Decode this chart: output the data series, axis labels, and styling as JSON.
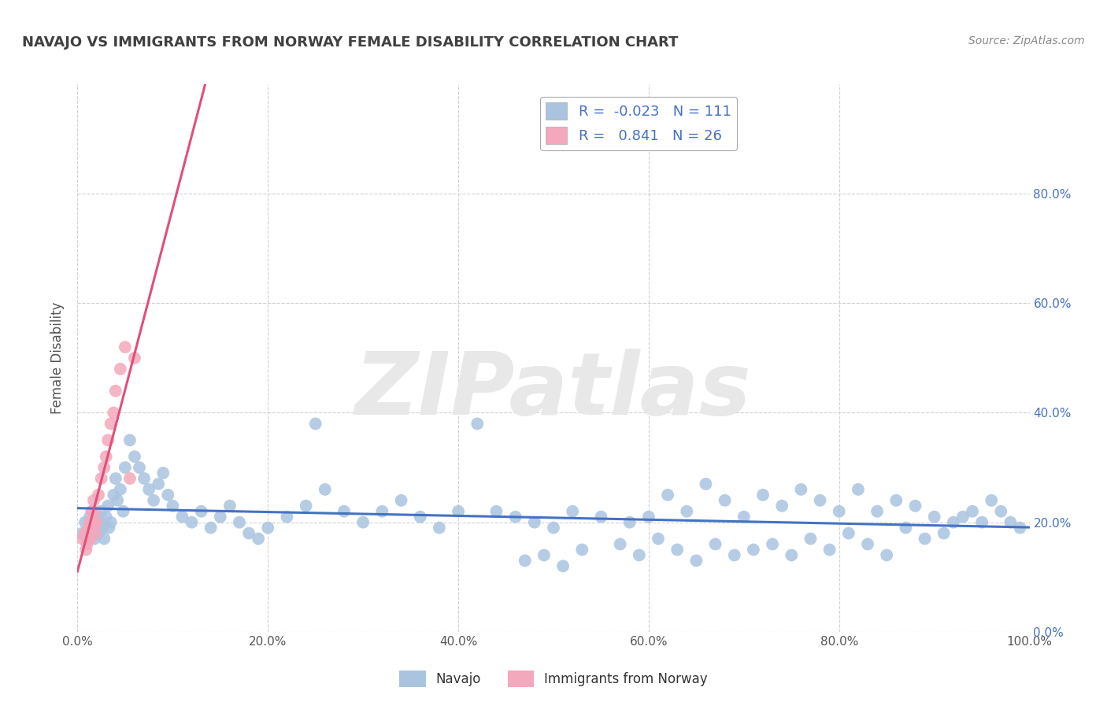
{
  "title": "NAVAJO VS IMMIGRANTS FROM NORWAY FEMALE DISABILITY CORRELATION CHART",
  "source": "Source: ZipAtlas.com",
  "ylabel": "Female Disability",
  "legend_navajo": "Navajo",
  "legend_norway": "Immigrants from Norway",
  "r_navajo": -0.023,
  "n_navajo": 111,
  "r_norway": 0.841,
  "n_norway": 26,
  "xlim": [
    0.0,
    1.0
  ],
  "ylim": [
    0.0,
    1.0
  ],
  "xticks": [
    0.0,
    0.2,
    0.4,
    0.6,
    0.8,
    1.0
  ],
  "yticks": [
    0.0,
    0.2,
    0.4,
    0.6,
    0.8
  ],
  "xtick_labels": [
    "0.0%",
    "20.0%",
    "40.0%",
    "60.0%",
    "80.0%",
    "100.0%"
  ],
  "ytick_labels_right": [
    "0.0%",
    "20.0%",
    "40.0%",
    "60.0%",
    "80.0%"
  ],
  "color_navajo": "#aac4e0",
  "color_norway": "#f4a8bb",
  "color_navajo_line": "#4472c4",
  "color_norway_line": "#e0507a",
  "background_color": "#ffffff",
  "grid_color": "#cccccc",
  "title_color": "#404040",
  "ytick_color": "#4472c4",
  "xtick_color": "#555555",
  "watermark_text": "ZIPatlas",
  "watermark_color": "#e8e8e8",
  "navajo_x": [
    0.005,
    0.008,
    0.01,
    0.012,
    0.013,
    0.015,
    0.016,
    0.017,
    0.018,
    0.019,
    0.02,
    0.022,
    0.024,
    0.025,
    0.026,
    0.028,
    0.03,
    0.032,
    0.033,
    0.035,
    0.038,
    0.04,
    0.042,
    0.045,
    0.048,
    0.05,
    0.055,
    0.06,
    0.065,
    0.07,
    0.075,
    0.08,
    0.085,
    0.09,
    0.095,
    0.1,
    0.11,
    0.12,
    0.13,
    0.14,
    0.15,
    0.16,
    0.17,
    0.18,
    0.19,
    0.2,
    0.22,
    0.24,
    0.25,
    0.26,
    0.28,
    0.3,
    0.32,
    0.34,
    0.36,
    0.38,
    0.4,
    0.42,
    0.44,
    0.46,
    0.48,
    0.5,
    0.52,
    0.55,
    0.58,
    0.6,
    0.62,
    0.64,
    0.66,
    0.68,
    0.7,
    0.72,
    0.74,
    0.76,
    0.78,
    0.8,
    0.82,
    0.84,
    0.86,
    0.88,
    0.9,
    0.92,
    0.94,
    0.96,
    0.98,
    0.99,
    0.97,
    0.95,
    0.93,
    0.91,
    0.89,
    0.87,
    0.85,
    0.83,
    0.81,
    0.79,
    0.77,
    0.75,
    0.73,
    0.71,
    0.69,
    0.67,
    0.65,
    0.63,
    0.61,
    0.59,
    0.57,
    0.53,
    0.51,
    0.49,
    0.47
  ],
  "navajo_y": [
    0.18,
    0.2,
    0.17,
    0.19,
    0.21,
    0.22,
    0.2,
    0.18,
    0.17,
    0.19,
    0.21,
    0.18,
    0.2,
    0.22,
    0.19,
    0.17,
    0.21,
    0.23,
    0.19,
    0.2,
    0.25,
    0.28,
    0.24,
    0.26,
    0.22,
    0.3,
    0.35,
    0.32,
    0.3,
    0.28,
    0.26,
    0.24,
    0.27,
    0.29,
    0.25,
    0.23,
    0.21,
    0.2,
    0.22,
    0.19,
    0.21,
    0.23,
    0.2,
    0.18,
    0.17,
    0.19,
    0.21,
    0.23,
    0.38,
    0.26,
    0.22,
    0.2,
    0.22,
    0.24,
    0.21,
    0.19,
    0.22,
    0.38,
    0.22,
    0.21,
    0.2,
    0.19,
    0.22,
    0.21,
    0.2,
    0.21,
    0.25,
    0.22,
    0.27,
    0.24,
    0.21,
    0.25,
    0.23,
    0.26,
    0.24,
    0.22,
    0.26,
    0.22,
    0.24,
    0.23,
    0.21,
    0.2,
    0.22,
    0.24,
    0.2,
    0.19,
    0.22,
    0.2,
    0.21,
    0.18,
    0.17,
    0.19,
    0.14,
    0.16,
    0.18,
    0.15,
    0.17,
    0.14,
    0.16,
    0.15,
    0.14,
    0.16,
    0.13,
    0.15,
    0.17,
    0.14,
    0.16,
    0.15,
    0.12,
    0.14,
    0.13
  ],
  "norway_x": [
    0.005,
    0.008,
    0.009,
    0.01,
    0.011,
    0.012,
    0.013,
    0.014,
    0.015,
    0.016,
    0.017,
    0.018,
    0.019,
    0.02,
    0.022,
    0.025,
    0.028,
    0.03,
    0.032,
    0.035,
    0.038,
    0.04,
    0.045,
    0.05,
    0.055,
    0.06
  ],
  "norway_y": [
    0.17,
    0.18,
    0.15,
    0.16,
    0.18,
    0.19,
    0.2,
    0.17,
    0.22,
    0.2,
    0.24,
    0.22,
    0.18,
    0.2,
    0.25,
    0.28,
    0.3,
    0.32,
    0.35,
    0.38,
    0.4,
    0.44,
    0.48,
    0.52,
    0.28,
    0.5
  ]
}
